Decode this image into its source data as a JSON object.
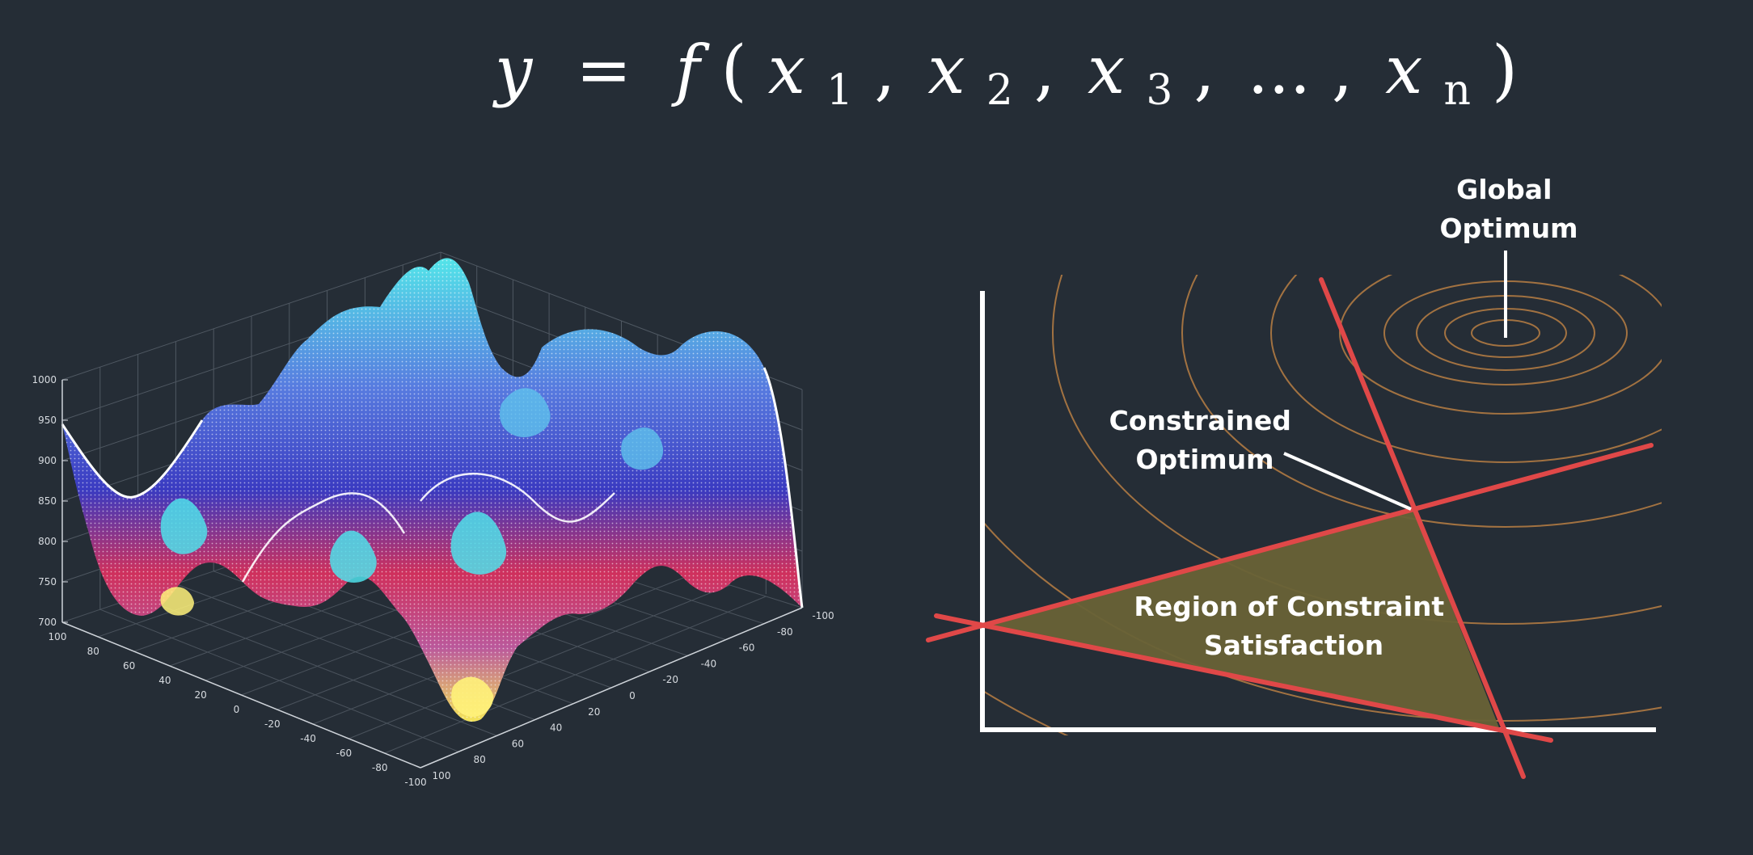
{
  "formula": {
    "lhs": "y",
    "equals": "=",
    "func": "f",
    "open": "(",
    "close": ")",
    "vars": [
      "x",
      "x",
      "x",
      "x"
    ],
    "subs": [
      "1",
      "2",
      "3",
      "n"
    ],
    "comma": ",",
    "ellipsis": "..."
  },
  "surface_plot": {
    "z_ticks": [
      "1000",
      "950",
      "900",
      "850",
      "800",
      "750",
      "700"
    ],
    "left_axis_ticks": [
      "100",
      "80",
      "60",
      "40",
      "20",
      "0",
      "-20",
      "-40",
      "-60",
      "-80",
      "-100"
    ],
    "front_axis_ticks": [
      "100",
      "80",
      "60",
      "40",
      "20",
      "0",
      "-20",
      "-40",
      "-60",
      "-80",
      "-100"
    ],
    "colors": {
      "peak": "#4fe8ee",
      "mid": "#3f3fd0",
      "low": "#e8345a",
      "valley": "#ffee55",
      "mesh": "#ffffff"
    }
  },
  "constraint_diagram": {
    "global_optimum_label": [
      "Global",
      "Optimum"
    ],
    "constrained_optimum_label": [
      "Constrained",
      "Optimum"
    ],
    "region_label": [
      "Region of Constraint",
      "Satisfaction"
    ],
    "colors": {
      "axes": "#ffffff",
      "contours": "#b07a43",
      "constraints": "#e04848",
      "region": "#686237"
    }
  }
}
